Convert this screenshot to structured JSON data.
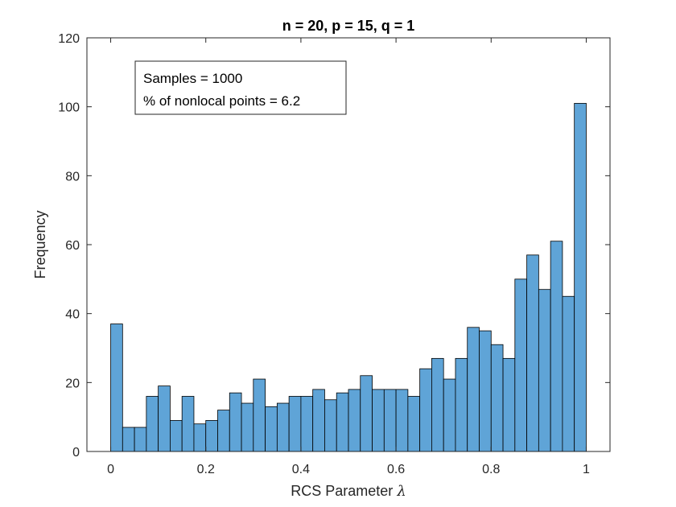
{
  "chart_data": {
    "type": "bar",
    "title": "n = 20, p = 15, q = 1",
    "xlabel": "RCS Parameter",
    "xlabel_symbol": "λ",
    "ylabel": "Frequency",
    "xlim": [
      -0.05,
      1.05
    ],
    "ylim": [
      0,
      120
    ],
    "xticks": [
      "0",
      "0.2",
      "0.4",
      "0.6",
      "0.8",
      "1"
    ],
    "xtick_values": [
      0,
      0.2,
      0.4,
      0.6,
      0.8,
      1
    ],
    "yticks": [
      "0",
      "20",
      "40",
      "60",
      "80",
      "100",
      "120"
    ],
    "ytick_values": [
      0,
      20,
      40,
      60,
      80,
      100,
      120
    ],
    "bin_start": 0,
    "bin_end": 1,
    "values": [
      37,
      7,
      7,
      16,
      19,
      9,
      16,
      8,
      9,
      12,
      17,
      14,
      21,
      13,
      14,
      16,
      16,
      18,
      15,
      17,
      18,
      22,
      18,
      18,
      18,
      16,
      24,
      27,
      21,
      27,
      36,
      35,
      31,
      27,
      50,
      57,
      47,
      61,
      45,
      101
    ],
    "annotation": [
      "Samples = 1000",
      "% of nonlocal points = 6.2"
    ],
    "annotation_placement": "top-left",
    "colors": {
      "bar_fill": "#5fa4d7",
      "bar_edge": "#000000",
      "axis": "#262626"
    }
  }
}
